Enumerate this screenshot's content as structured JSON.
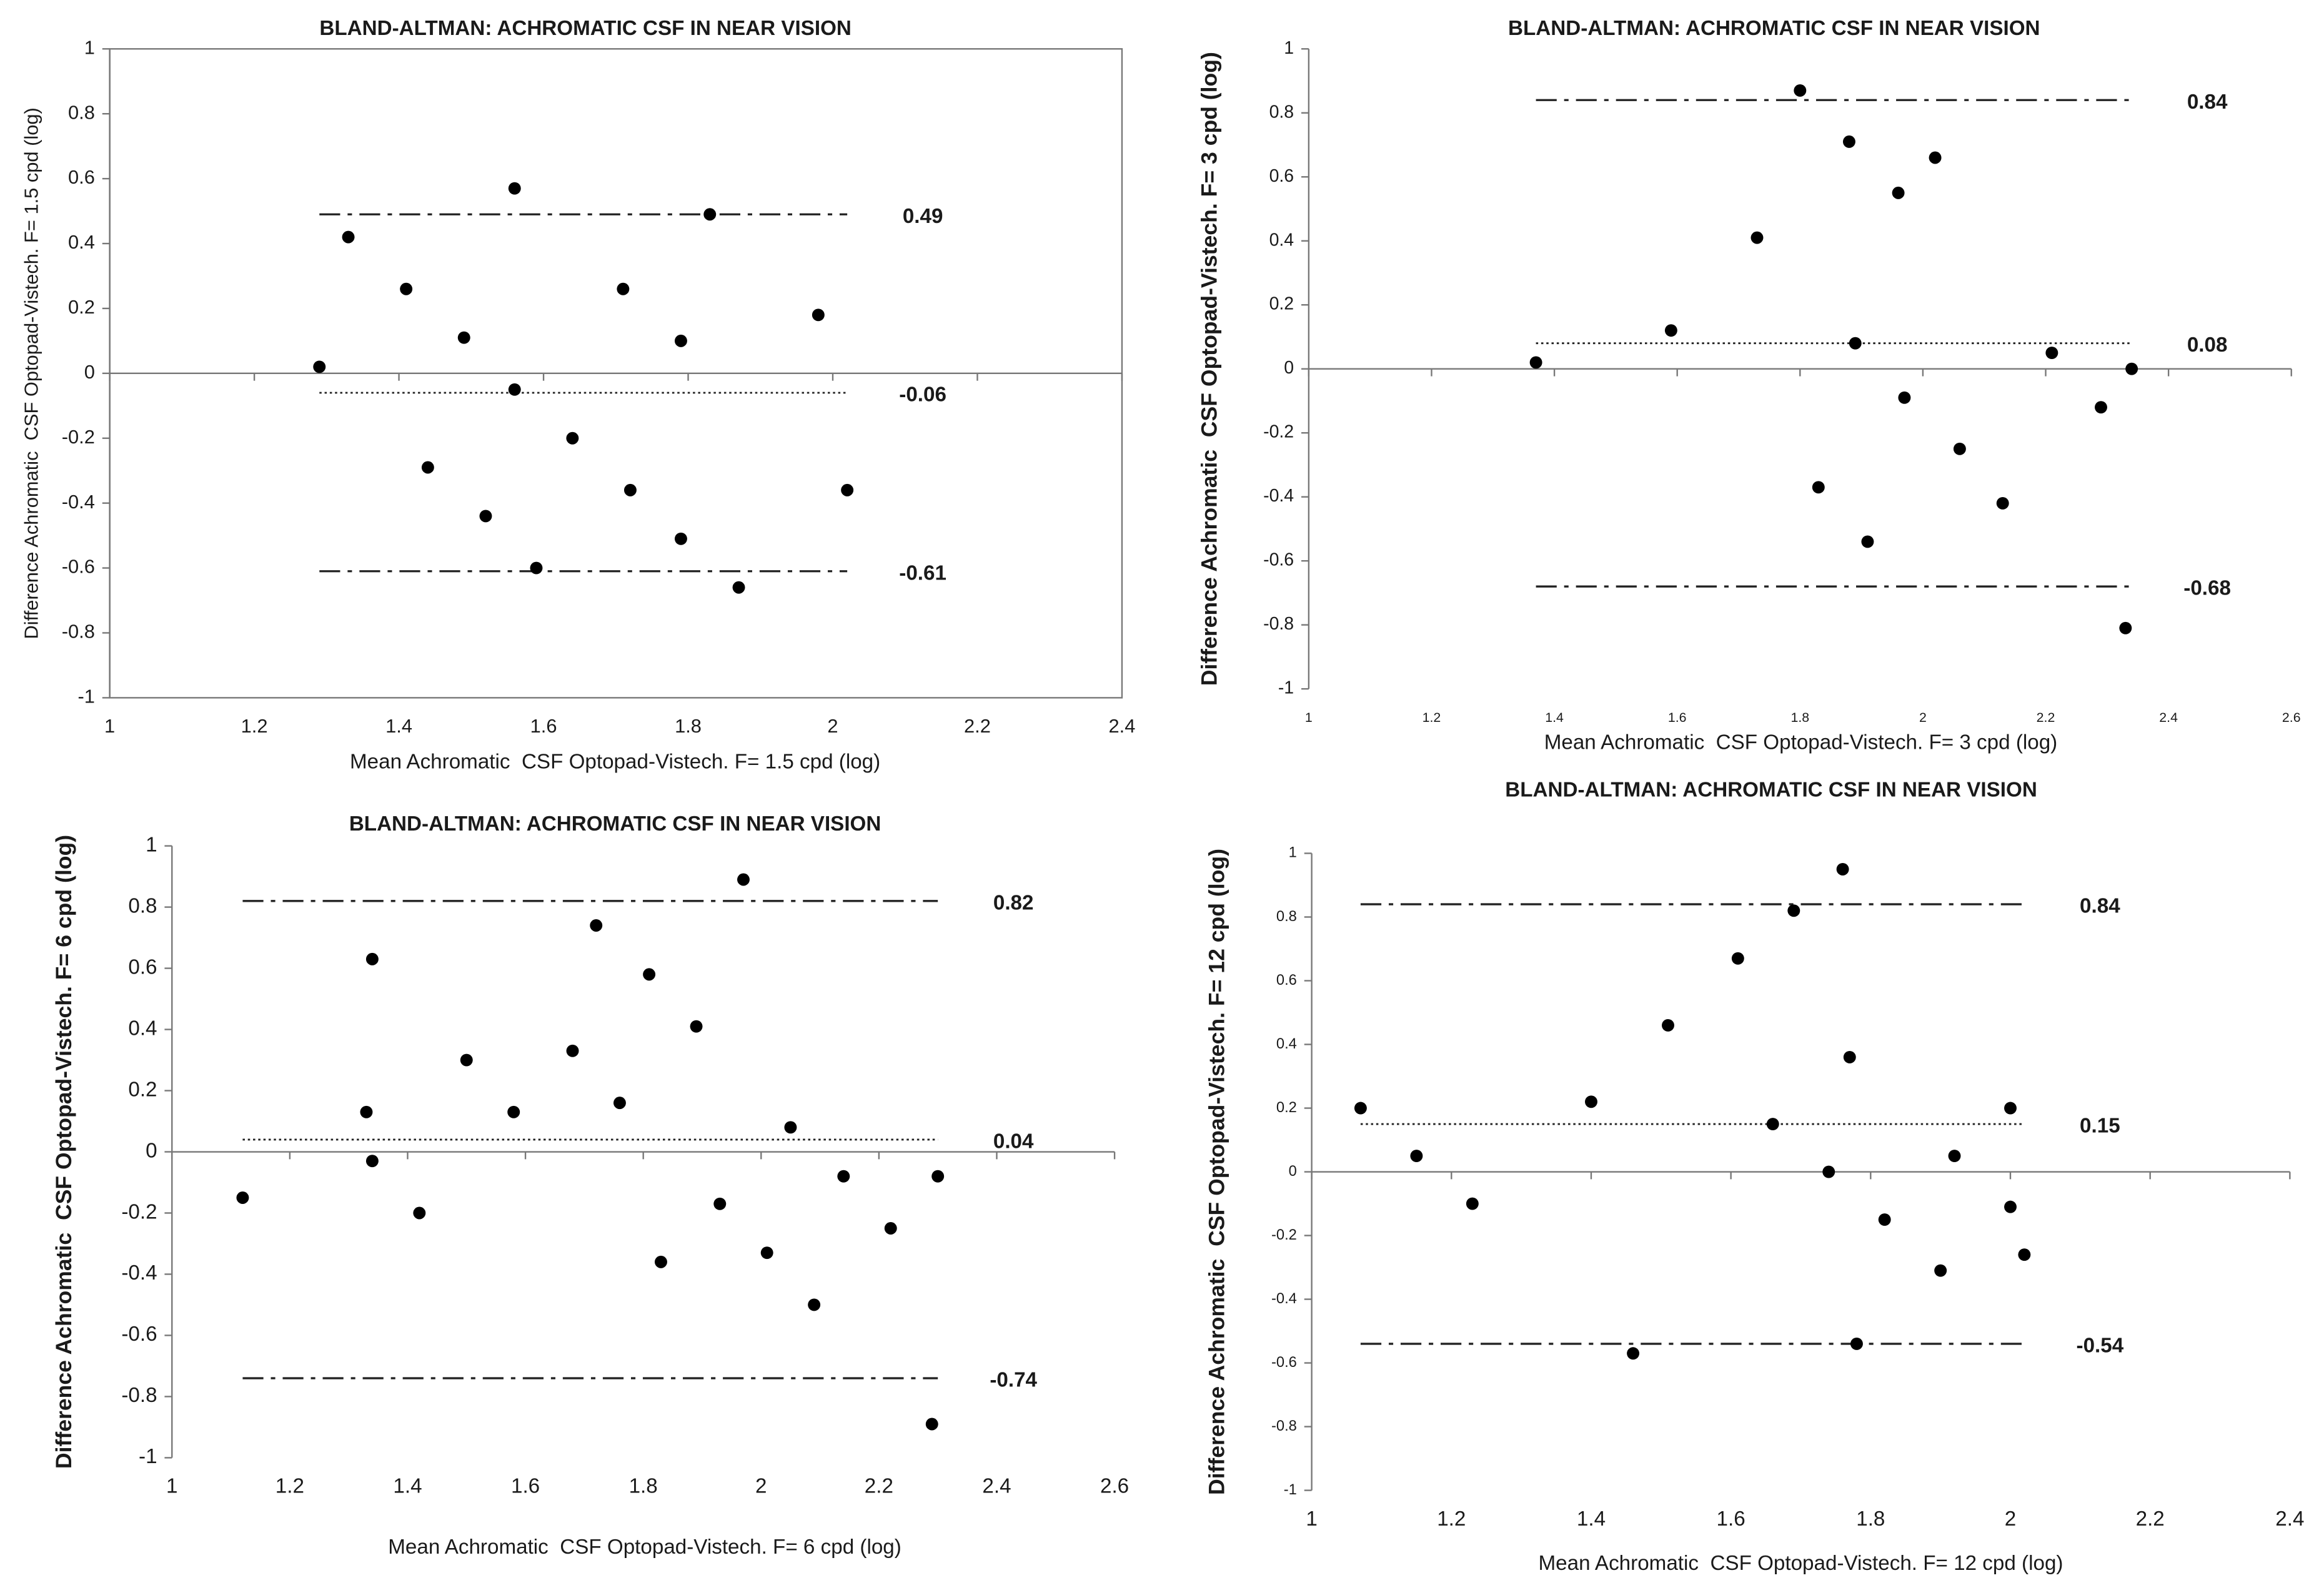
{
  "chart_data": [
    {
      "type": "scatter",
      "title": "BLAND-ALTMAN: ACHROMATIC CSF IN NEAR VISION",
      "x_label": "Mean Achromatic  CSF Optopad-Vistech. F= 1.5 cpd (log)",
      "y_label": "Difference Achromatic  CSF Optopad-Vistech. F= 1.5 cpd (log)",
      "color": "#000000",
      "frame": true,
      "x": [
        1.29,
        1.33,
        1.41,
        1.49,
        1.56,
        1.56,
        1.71,
        1.79,
        1.83,
        1.98,
        1.44,
        1.52,
        1.64,
        1.72,
        1.59,
        1.79,
        1.87,
        2.02
      ],
      "y": [
        0.02,
        0.42,
        0.26,
        0.11,
        0.57,
        -0.05,
        0.26,
        0.1,
        0.49,
        0.18,
        -0.29,
        -0.44,
        -0.2,
        -0.36,
        -0.6,
        -0.51,
        -0.66,
        -0.36
      ],
      "xlim": [
        1,
        2.4
      ],
      "ylim": [
        -1,
        1
      ],
      "xticks": [
        1,
        1.2,
        1.4,
        1.6,
        1.8,
        2,
        2.2,
        2.4
      ],
      "yticks": [
        1,
        0.8,
        0.6,
        0.4,
        0.2,
        0,
        -0.2,
        -0.4,
        -0.6,
        -0.8,
        -1
      ],
      "hlines": [
        {
          "value": 0.49,
          "style": "dashdot"
        },
        {
          "value": -0.06,
          "style": "dotted"
        },
        {
          "value": -0.61,
          "style": "dashdot"
        }
      ]
    },
    {
      "type": "scatter",
      "title": "BLAND-ALTMAN: ACHROMATIC CSF IN NEAR VISION",
      "x_label": "Mean Achromatic  CSF Optopad-Vistech. F= 3 cpd (log)",
      "y_label": "Difference Achromatic  CSF Optopad-Vistech. F= 3 cpd (log)",
      "color": "#000000",
      "frame": false,
      "x": [
        1.37,
        1.59,
        1.73,
        1.8,
        1.88,
        1.96,
        2.02,
        1.89,
        2.21,
        2.34,
        2.29,
        1.97,
        2.06,
        1.83,
        1.91,
        2.13,
        2.33
      ],
      "y": [
        0.02,
        0.12,
        0.41,
        0.87,
        0.71,
        0.55,
        0.66,
        0.08,
        0.05,
        0.0,
        -0.12,
        -0.09,
        -0.25,
        -0.37,
        -0.54,
        -0.42,
        -0.81
      ],
      "xlim": [
        1,
        2.6
      ],
      "ylim": [
        -1,
        1
      ],
      "xticks": [
        1,
        1.2,
        1.4,
        1.6,
        1.8,
        2,
        2.2,
        2.4,
        2.6
      ],
      "yticks": [
        1,
        0.8,
        0.6,
        0.4,
        0.2,
        0,
        -0.2,
        -0.4,
        -0.6,
        -0.8,
        -1
      ],
      "hlines": [
        {
          "value": 0.84,
          "style": "dashdot"
        },
        {
          "value": 0.08,
          "style": "dotted"
        },
        {
          "value": -0.68,
          "style": "dashdot"
        }
      ]
    },
    {
      "type": "scatter",
      "title": "BLAND-ALTMAN: ACHROMATIC CSF IN NEAR VISION",
      "x_label": "Mean Achromatic  CSF Optopad-Vistech. F= 6 cpd (log)",
      "y_label": "Difference Achromatic  CSF Optopad-Vistech. F= 6 cpd (log)",
      "color": "#000000",
      "frame": false,
      "x": [
        1.12,
        1.33,
        1.34,
        1.34,
        1.42,
        1.5,
        1.58,
        1.68,
        1.72,
        1.76,
        1.81,
        1.83,
        1.89,
        1.93,
        1.97,
        2.01,
        2.05,
        2.09,
        2.14,
        2.22,
        2.29,
        2.3
      ],
      "y": [
        -0.15,
        0.13,
        0.63,
        -0.03,
        -0.2,
        0.3,
        0.13,
        0.33,
        0.74,
        0.16,
        0.58,
        -0.36,
        0.41,
        -0.17,
        0.89,
        -0.33,
        0.08,
        -0.5,
        -0.08,
        -0.25,
        -0.89,
        -0.08
      ],
      "xlim": [
        1,
        2.6
      ],
      "ylim": [
        -1,
        1
      ],
      "xticks": [
        1,
        1.2,
        1.4,
        1.6,
        1.8,
        2,
        2.2,
        2.4,
        2.6
      ],
      "yticks": [
        1,
        0.8,
        0.6,
        0.4,
        0.2,
        0,
        -0.2,
        -0.4,
        -0.6,
        -0.8,
        -1
      ],
      "hlines": [
        {
          "value": 0.82,
          "style": "dashdot"
        },
        {
          "value": 0.04,
          "style": "dotted"
        },
        {
          "value": -0.74,
          "style": "dashdot"
        }
      ]
    },
    {
      "type": "scatter",
      "title": "BLAND-ALTMAN: ACHROMATIC CSF IN NEAR VISION",
      "x_label": "Mean Achromatic  CSF Optopad-Vistech. F= 12 cpd (log)",
      "y_label": "Difference Achromatic  CSF Optopad-Vistech. F= 12 cpd (log)",
      "color": "#000000",
      "frame": false,
      "x": [
        1.07,
        1.15,
        1.23,
        1.4,
        1.51,
        1.46,
        1.61,
        1.66,
        1.69,
        1.74,
        1.76,
        1.77,
        1.78,
        1.82,
        1.9,
        1.92,
        2.0,
        2.0,
        2.02
      ],
      "y": [
        0.2,
        0.05,
        -0.1,
        0.22,
        0.46,
        -0.57,
        0.67,
        0.15,
        0.82,
        0.0,
        0.95,
        0.36,
        -0.54,
        -0.15,
        -0.31,
        0.05,
        -0.11,
        0.2,
        -0.26
      ],
      "xlim": [
        1,
        2.4
      ],
      "ylim": [
        -1,
        1
      ],
      "xticks": [
        1,
        1.2,
        1.4,
        1.6,
        1.8,
        2,
        2.2,
        2.4
      ],
      "yticks": [
        1,
        0.8,
        0.6,
        0.4,
        0.2,
        0,
        -0.2,
        -0.4,
        -0.6,
        -0.8,
        -1
      ],
      "hlines": [
        {
          "value": 0.84,
          "style": "dashdot"
        },
        {
          "value": 0.15,
          "style": "dotted"
        },
        {
          "value": -0.54,
          "style": "dashdot"
        }
      ]
    }
  ]
}
